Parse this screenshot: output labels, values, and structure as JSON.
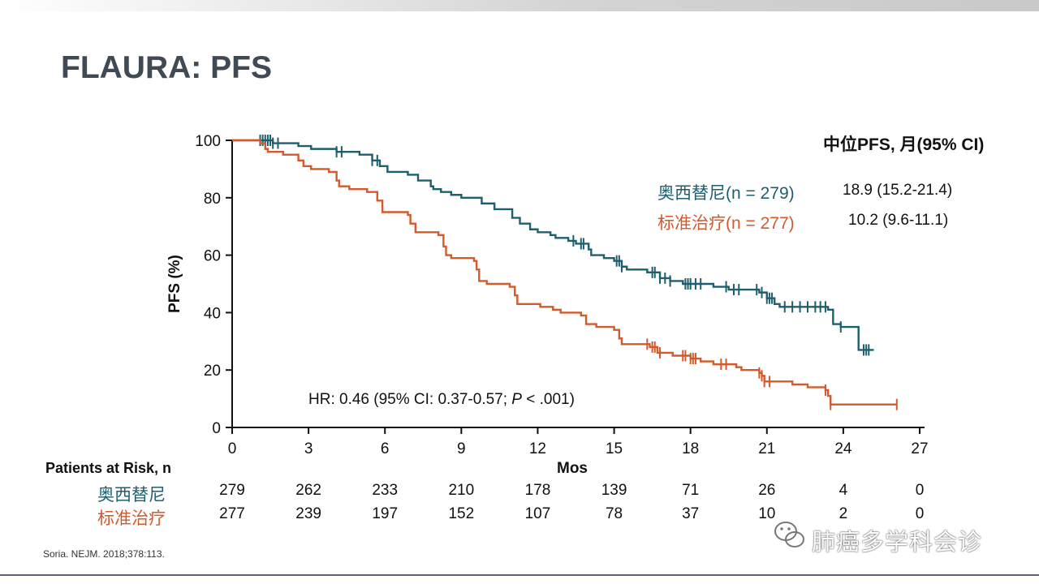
{
  "page": {
    "title": "FLAURA: PFS",
    "footnote": "Soria. NEJM. 2018;378:113.",
    "watermark": "肺癌多学科会诊"
  },
  "colors": {
    "osimertinib": "#1e5f6e",
    "standard": "#d25a2b",
    "axis": "#111111"
  },
  "chart_data": {
    "type": "line",
    "subtype": "kaplan-meier",
    "title": "FLAURA: PFS",
    "xlabel": "Mos",
    "ylabel": "PFS (%)",
    "xlim": [
      0,
      27
    ],
    "ylim": [
      0,
      100
    ],
    "xticks": [
      0,
      3,
      6,
      9,
      12,
      15,
      18,
      21,
      24,
      27
    ],
    "yticks": [
      0,
      20,
      40,
      60,
      80,
      100
    ],
    "legend_header": "中位PFS, 月(95% CI)",
    "annotation": {
      "prefix": "HR: 0.46 (95% CI: 0.37-0.57; ",
      "p": "P",
      "suffix": " < .001)"
    },
    "series": [
      {
        "name": "奥西替尼",
        "legend_label": "奥西替尼(n = 279)",
        "median": "18.9 (15.2-21.4)",
        "color": "#1e5f6e",
        "steps": [
          [
            0,
            100
          ],
          [
            1.2,
            100
          ],
          [
            1.6,
            99
          ],
          [
            2.6,
            98
          ],
          [
            3.1,
            97
          ],
          [
            4.1,
            96
          ],
          [
            5.0,
            95
          ],
          [
            5.5,
            93
          ],
          [
            5.8,
            91
          ],
          [
            6.1,
            89
          ],
          [
            6.9,
            88
          ],
          [
            7.3,
            86
          ],
          [
            7.8,
            84
          ],
          [
            7.9,
            83
          ],
          [
            8.2,
            82
          ],
          [
            8.6,
            81
          ],
          [
            9.0,
            80
          ],
          [
            9.8,
            78
          ],
          [
            10.3,
            76
          ],
          [
            11.0,
            73
          ],
          [
            11.3,
            71
          ],
          [
            11.7,
            69
          ],
          [
            12.0,
            68
          ],
          [
            12.5,
            67
          ],
          [
            12.7,
            66
          ],
          [
            13.2,
            65
          ],
          [
            13.5,
            64
          ],
          [
            14.0,
            62
          ],
          [
            14.1,
            60
          ],
          [
            14.6,
            59
          ],
          [
            15.0,
            58
          ],
          [
            15.3,
            56
          ],
          [
            15.5,
            55
          ],
          [
            16.3,
            54
          ],
          [
            16.8,
            52
          ],
          [
            17.2,
            51
          ],
          [
            17.7,
            50
          ],
          [
            18.5,
            50
          ],
          [
            18.9,
            49
          ],
          [
            19.5,
            48
          ],
          [
            20.7,
            47
          ],
          [
            21.0,
            45
          ],
          [
            21.3,
            43
          ],
          [
            21.5,
            42
          ],
          [
            23.4,
            41
          ],
          [
            23.6,
            36
          ],
          [
            23.9,
            35
          ],
          [
            24.5,
            35
          ],
          [
            24.6,
            27
          ],
          [
            25.2,
            27
          ]
        ],
        "censor": [
          1.1,
          1.2,
          1.3,
          1.4,
          1.5,
          1.6,
          1.8,
          4.1,
          4.3,
          5.5,
          5.7,
          13.4,
          13.7,
          13.8,
          15.1,
          15.2,
          15.3,
          16.5,
          16.6,
          16.8,
          17.0,
          17.2,
          17.8,
          17.9,
          18.0,
          18.2,
          18.4,
          19.4,
          19.7,
          19.9,
          20.6,
          20.8,
          21.0,
          21.1,
          21.2,
          21.7,
          22.0,
          22.3,
          22.6,
          22.9,
          23.1,
          23.3,
          23.9,
          24.8,
          24.9,
          25.0
        ]
      },
      {
        "name": "标准治疗",
        "legend_label": "标准治疗(n = 277)",
        "median": "10.2 (9.6-11.1)",
        "color": "#d25a2b",
        "steps": [
          [
            0,
            100
          ],
          [
            1.1,
            99
          ],
          [
            1.3,
            97
          ],
          [
            1.4,
            96
          ],
          [
            2.0,
            95
          ],
          [
            2.6,
            93
          ],
          [
            2.8,
            91
          ],
          [
            3.1,
            90
          ],
          [
            3.8,
            89
          ],
          [
            4.1,
            86
          ],
          [
            4.2,
            84
          ],
          [
            4.6,
            83
          ],
          [
            5.3,
            82
          ],
          [
            5.7,
            79
          ],
          [
            5.9,
            75
          ],
          [
            6.9,
            74
          ],
          [
            7.0,
            71
          ],
          [
            7.2,
            68
          ],
          [
            8.1,
            67
          ],
          [
            8.3,
            63
          ],
          [
            8.4,
            60
          ],
          [
            8.6,
            59
          ],
          [
            9.5,
            58
          ],
          [
            9.6,
            55
          ],
          [
            9.7,
            51
          ],
          [
            10.0,
            50
          ],
          [
            10.9,
            49
          ],
          [
            11.1,
            46
          ],
          [
            11.2,
            43
          ],
          [
            12.1,
            42
          ],
          [
            12.6,
            41
          ],
          [
            12.9,
            40
          ],
          [
            13.7,
            39
          ],
          [
            13.9,
            36
          ],
          [
            14.3,
            35
          ],
          [
            15.0,
            34
          ],
          [
            15.2,
            31
          ],
          [
            15.3,
            29
          ],
          [
            16.4,
            28
          ],
          [
            16.7,
            26
          ],
          [
            17.3,
            25
          ],
          [
            18.0,
            24
          ],
          [
            18.4,
            23
          ],
          [
            18.9,
            22
          ],
          [
            19.8,
            21
          ],
          [
            20.0,
            20
          ],
          [
            20.7,
            19
          ],
          [
            20.8,
            18
          ],
          [
            20.9,
            16
          ],
          [
            22.0,
            15
          ],
          [
            22.6,
            14
          ],
          [
            23.3,
            13
          ],
          [
            23.4,
            11
          ],
          [
            23.5,
            8
          ],
          [
            24.0,
            8
          ],
          [
            26.1,
            8
          ]
        ],
        "censor": [
          16.3,
          16.5,
          16.6,
          16.8,
          17.7,
          17.8,
          18.0,
          18.1,
          18.2,
          19.2,
          19.4,
          20.7,
          20.8,
          20.9,
          21.1,
          23.3,
          23.5,
          26.1
        ]
      }
    ],
    "risk_table": {
      "header": "Patients at Risk, n",
      "times": [
        0,
        3,
        6,
        9,
        12,
        15,
        18,
        21,
        24,
        27
      ],
      "rows": [
        {
          "label": "奥西替尼",
          "values": [
            "279",
            "262",
            "233",
            "210",
            "178",
            "139",
            "71",
            "26",
            "4",
            "0"
          ]
        },
        {
          "label": "标准治疗",
          "values": [
            "277",
            "239",
            "197",
            "152",
            "107",
            "78",
            "37",
            "10",
            "2",
            "0"
          ]
        }
      ]
    }
  }
}
